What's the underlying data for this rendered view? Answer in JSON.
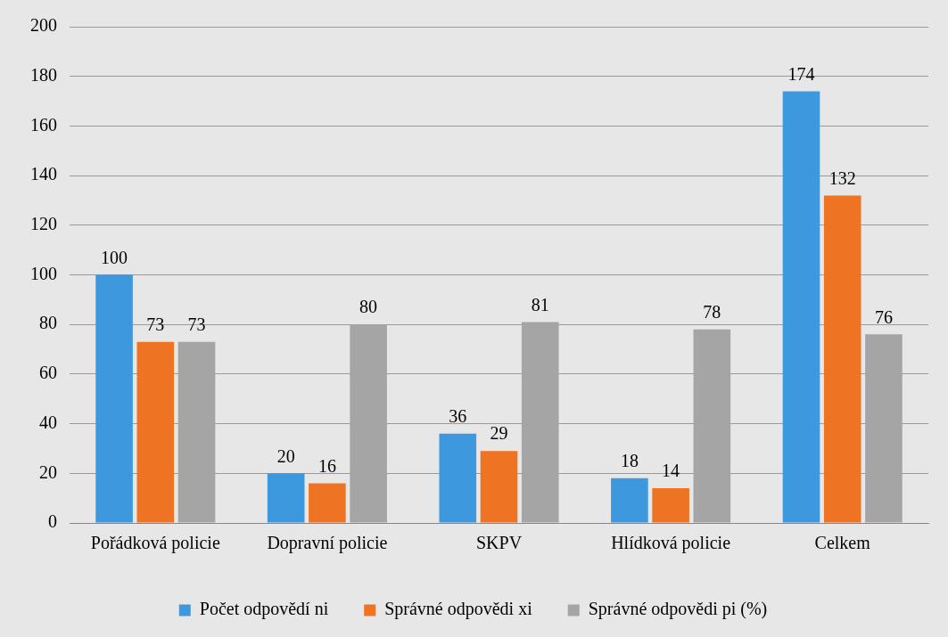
{
  "chart_data": {
    "type": "bar",
    "categories": [
      "Pořádková policie",
      "Dopravní policie",
      "SKPV",
      "Hlídková policie",
      "Celkem"
    ],
    "series": [
      {
        "name": "Počet odpovědí ni",
        "color": "#3d98de",
        "values": [
          100,
          20,
          36,
          18,
          174
        ]
      },
      {
        "name": "Správné odpovědi xi",
        "color": "#ee7424",
        "values": [
          73,
          16,
          29,
          14,
          132
        ]
      },
      {
        "name": "Správné odpovědi pi (%)",
        "color": "#a5a5a5",
        "values": [
          73,
          80,
          81,
          78,
          76
        ]
      }
    ],
    "ylim": [
      0,
      200
    ],
    "yticks": [
      0,
      20,
      40,
      60,
      80,
      100,
      120,
      140,
      160,
      180,
      200
    ],
    "grid": "y",
    "legend": "bottom",
    "data_labels": true
  }
}
